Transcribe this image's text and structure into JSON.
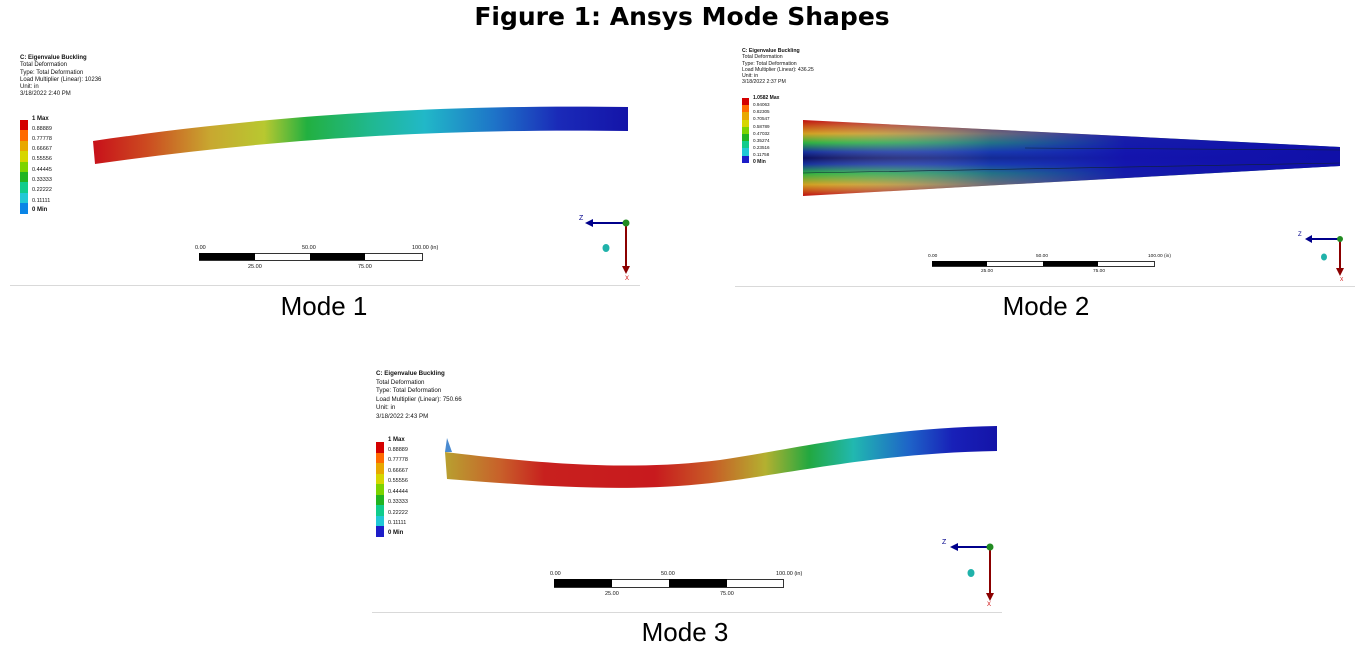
{
  "figure_title": "Figure 1: Ansys Mode Shapes",
  "unit_label": "(in)",
  "colors": {
    "legend": [
      "#d40000",
      "#ff6a00",
      "#e8a800",
      "#d6d600",
      "#7cd300",
      "#21b421",
      "#10cc8c",
      "#21c8d6",
      "#0a85e6",
      "#1d1dc8"
    ],
    "axis_z": "#00008b",
    "axis_x": "#8b0000",
    "origin": "#228b22"
  },
  "panels": [
    {
      "caption": "Mode 1",
      "info": {
        "title": "C: Eigenvalue Buckling",
        "line1": "Total Deformation",
        "line2": "Type: Total Deformation",
        "line3": "Load Multiplier (Linear): 10236",
        "line4": "Unit: in",
        "line5": "3/18/2022 2:40 PM"
      },
      "legend": [
        "1 Max",
        "0.88889",
        "0.77778",
        "0.66667",
        "0.55556",
        "0.44445",
        "0.33333",
        "0.22222",
        "0.11111",
        "0 Min"
      ],
      "scalebar": {
        "top": [
          "0.00",
          "50.00",
          "100.00 (in)"
        ],
        "bottom": [
          "25.00",
          "75.00"
        ]
      },
      "axis": {
        "z": "Z",
        "x": "X"
      }
    },
    {
      "caption": "Mode 2",
      "info": {
        "title": "C: Eigenvalue Buckling",
        "line1": "Total Deformation",
        "line2": "Type: Total Deformation",
        "line3": "Load Multiplier (Linear): 436.25",
        "line4": "Unit: in",
        "line5": "3/18/2022 2:37 PM"
      },
      "legend": [
        "1.0582 Max",
        "0.94063",
        "0.82305",
        "0.70547",
        "0.58789",
        "0.47032",
        "0.35274",
        "0.23516",
        "0.11758",
        "0 Min"
      ],
      "scalebar": {
        "top": [
          "0.00",
          "50.00",
          "100.00 (in)"
        ],
        "bottom": [
          "25.00",
          "75.00"
        ]
      },
      "axis": {
        "z": "Z",
        "x": "X"
      }
    },
    {
      "caption": "Mode 3",
      "info": {
        "title": "C: Eigenvalue Buckling",
        "line1": "Total Deformation",
        "line2": "Type: Total Deformation",
        "line3": "Load Multiplier (Linear): 750.66",
        "line4": "Unit: in",
        "line5": "3/18/2022 2:43 PM"
      },
      "legend": [
        "1 Max",
        "0.88889",
        "0.77778",
        "0.66667",
        "0.55556",
        "0.44444",
        "0.33333",
        "0.22222",
        "0.11111",
        "0 Min"
      ],
      "scalebar": {
        "top": [
          "0.00",
          "50.00",
          "100.00 (in)"
        ],
        "bottom": [
          "25.00",
          "75.00"
        ]
      },
      "axis": {
        "z": "Z",
        "x": "X"
      }
    }
  ]
}
